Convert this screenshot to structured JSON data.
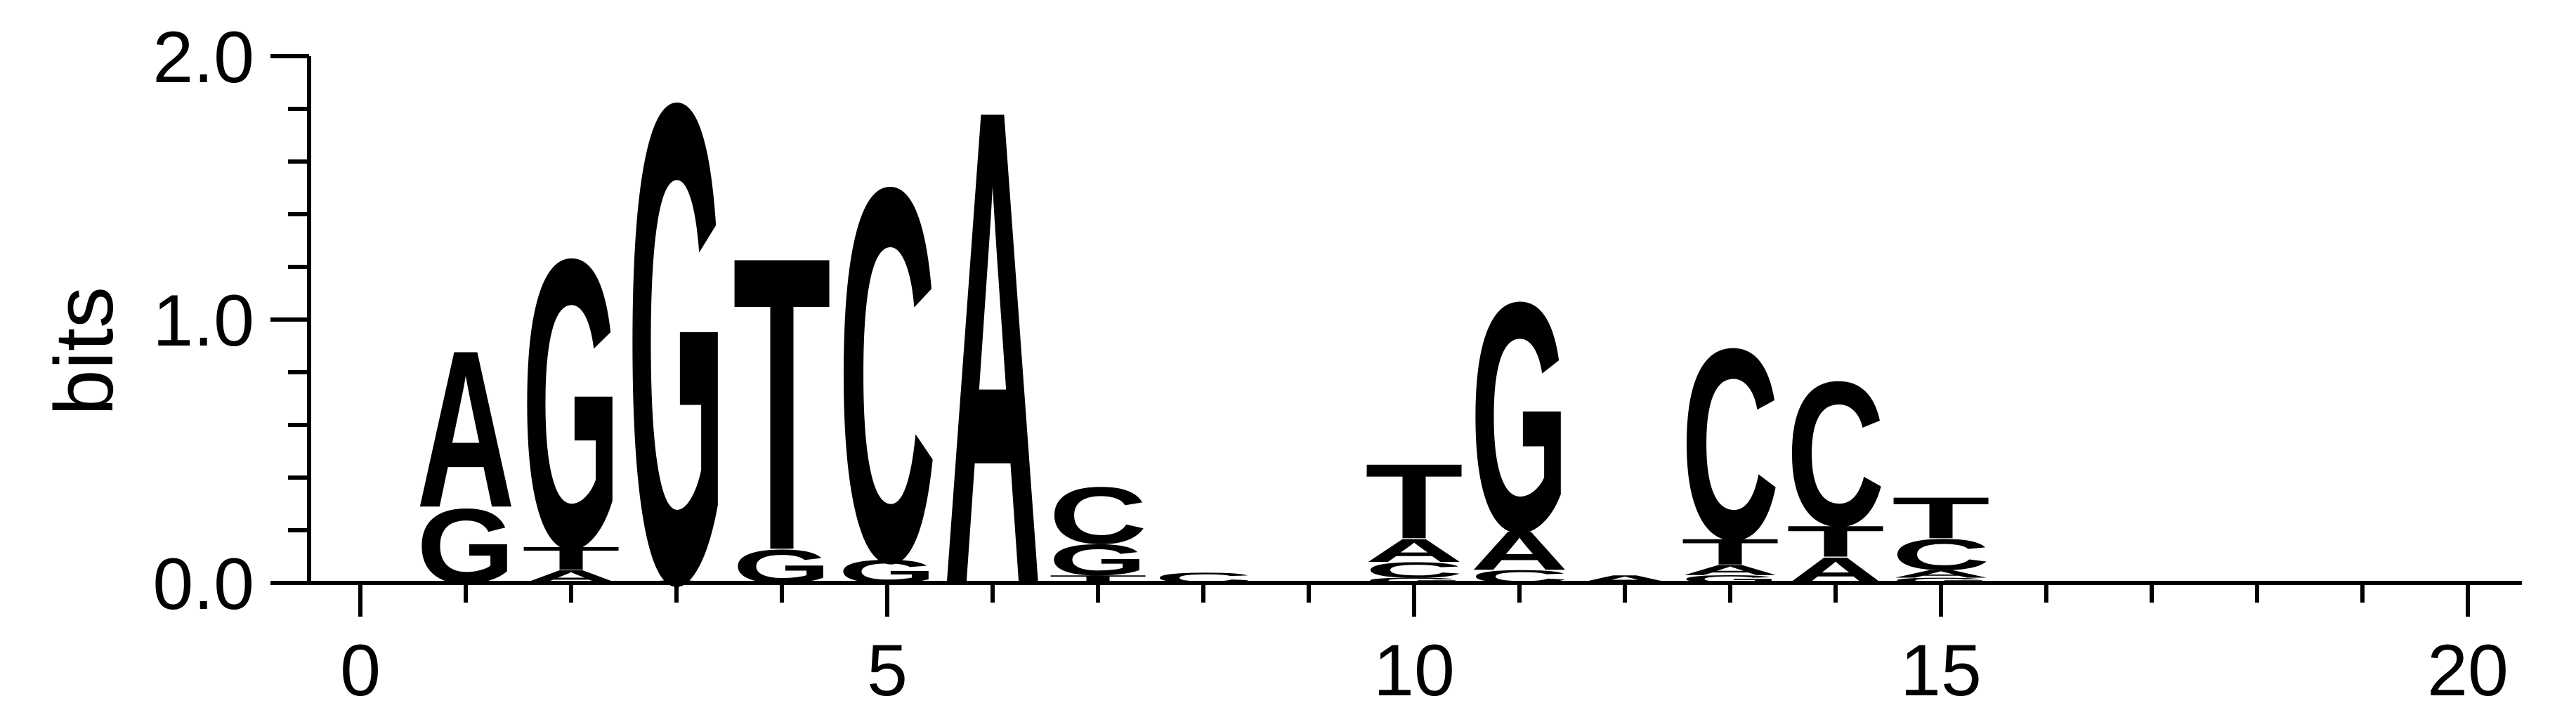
{
  "chart_data": {
    "type": "sequence-logo",
    "ylabel": "bits",
    "xlabel": "",
    "xlim": [
      -0.5,
      20.5
    ],
    "ylim": [
      0,
      2.0
    ],
    "xticks": [
      0,
      5,
      10,
      15,
      20
    ],
    "yticks": [
      "0.0",
      "1.0",
      "2.0"
    ],
    "colors": {
      "A": "#008000",
      "C": "#0000ff",
      "G": "#ffa500",
      "T": "#ff0000"
    },
    "positions": [
      {
        "x": 1,
        "letters": [
          {
            "l": "G",
            "h": 0.29
          },
          {
            "l": "A",
            "h": 0.61
          }
        ]
      },
      {
        "x": 2,
        "letters": [
          {
            "l": "A",
            "h": 0.05
          },
          {
            "l": "T",
            "h": 0.09
          },
          {
            "l": "G",
            "h": 1.12
          }
        ]
      },
      {
        "x": 3,
        "letters": [
          {
            "l": "A",
            "h": 0.01
          },
          {
            "l": "G",
            "h": 1.86
          }
        ]
      },
      {
        "x": 4,
        "letters": [
          {
            "l": "G",
            "h": 0.13
          },
          {
            "l": "T",
            "h": 1.14
          }
        ]
      },
      {
        "x": 5,
        "letters": [
          {
            "l": "G",
            "h": 0.09
          },
          {
            "l": "C",
            "h": 1.45
          }
        ]
      },
      {
        "x": 6,
        "letters": [
          {
            "l": "A",
            "h": 1.85
          }
        ]
      },
      {
        "x": 7,
        "letters": [
          {
            "l": "T",
            "h": 0.03
          },
          {
            "l": "G",
            "h": 0.12
          },
          {
            "l": "C",
            "h": 0.22
          }
        ]
      },
      {
        "x": 8,
        "letters": [
          {
            "l": "C",
            "h": 0.04
          }
        ]
      },
      {
        "x": 10,
        "letters": [
          {
            "l": "G",
            "h": 0.02
          },
          {
            "l": "C",
            "h": 0.06
          },
          {
            "l": "A",
            "h": 0.09
          },
          {
            "l": "T",
            "h": 0.29
          }
        ]
      },
      {
        "x": 11,
        "letters": [
          {
            "l": "C",
            "h": 0.05
          },
          {
            "l": "A",
            "h": 0.15
          },
          {
            "l": "G",
            "h": 0.89
          }
        ]
      },
      {
        "x": 12,
        "letters": [
          {
            "l": "A",
            "h": 0.03
          }
        ]
      },
      {
        "x": 13,
        "letters": [
          {
            "l": "G",
            "h": 0.03
          },
          {
            "l": "A",
            "h": 0.04
          },
          {
            "l": "T",
            "h": 0.1
          },
          {
            "l": "C",
            "h": 0.74
          }
        ]
      },
      {
        "x": 14,
        "letters": [
          {
            "l": "A",
            "h": 0.1
          },
          {
            "l": "T",
            "h": 0.12
          },
          {
            "l": "C",
            "h": 0.56
          }
        ]
      },
      {
        "x": 15,
        "letters": [
          {
            "l": "G",
            "h": 0.02
          },
          {
            "l": "A",
            "h": 0.03
          },
          {
            "l": "C",
            "h": 0.12
          },
          {
            "l": "T",
            "h": 0.16
          }
        ]
      }
    ]
  }
}
